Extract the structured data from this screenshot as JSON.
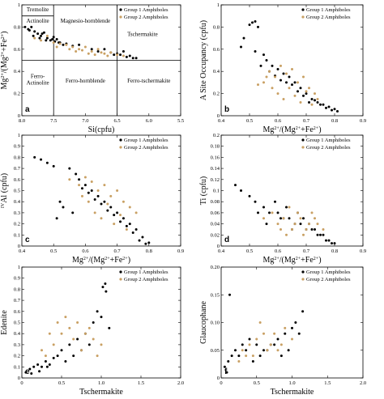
{
  "colors": {
    "group1": "#000000",
    "group2": "#c9a063"
  },
  "chart_data": [
    {
      "type": "scatter",
      "panel": "a",
      "xlabel": "Si(cpfu)",
      "ylabel": "Mg2+/(Mg2++Fe2+)",
      "xlim": [
        8.0,
        5.5
      ],
      "ylim": [
        0,
        1
      ],
      "xticks": [
        "8.0",
        "7.5",
        "7.0",
        "6.5",
        "6.0",
        "5.5"
      ],
      "yticks": [
        "0",
        "0.2",
        "0.4",
        "0.6",
        "0.8",
        "1"
      ],
      "legend": [
        "Group 1 Amphiboles",
        "Group 2 Amphiboles"
      ],
      "fields": [
        "Tremolite",
        "Actinolite",
        "Magnesio-hornblende",
        "Tschermakite",
        "Ferro-Actinolite",
        "Ferro-hornblende",
        "Ferro-tschermakite"
      ],
      "series": [
        {
          "name": "Group 1 Amphiboles",
          "x": [
            7.9,
            7.85,
            7.8,
            7.75,
            7.7,
            7.65,
            7.6,
            7.55,
            7.5,
            7.45,
            7.4,
            7.3,
            7.2,
            7.1,
            6.9,
            6.8,
            6.7,
            6.6,
            6.5,
            6.45,
            6.4,
            6.3,
            6.2,
            7.95,
            7.88,
            7.72,
            7.62,
            7.52,
            7.42,
            7.35,
            6.55,
            6.35,
            6.25,
            7.82,
            7.68,
            7.48
          ],
          "y": [
            0.78,
            0.8,
            0.76,
            0.74,
            0.72,
            0.75,
            0.7,
            0.68,
            0.71,
            0.69,
            0.66,
            0.65,
            0.63,
            0.64,
            0.6,
            0.58,
            0.6,
            0.57,
            0.56,
            0.55,
            0.58,
            0.54,
            0.52,
            0.8,
            0.77,
            0.7,
            0.68,
            0.69,
            0.66,
            0.64,
            0.55,
            0.53,
            0.52,
            0.72,
            0.74,
            0.67
          ]
        },
        {
          "name": "Group 2 Amphiboles",
          "x": [
            7.8,
            7.7,
            7.6,
            7.5,
            7.4,
            7.3,
            7.2,
            7.1,
            7.0,
            6.9,
            6.8,
            6.7,
            6.6,
            6.5,
            6.4,
            7.25,
            7.15,
            6.95,
            6.85,
            6.75,
            6.65,
            7.45,
            7.05
          ],
          "y": [
            0.7,
            0.68,
            0.72,
            0.66,
            0.65,
            0.64,
            0.62,
            0.6,
            0.62,
            0.58,
            0.6,
            0.56,
            0.57,
            0.55,
            0.54,
            0.6,
            0.58,
            0.56,
            0.55,
            0.57,
            0.54,
            0.62,
            0.59
          ]
        }
      ]
    },
    {
      "type": "scatter",
      "panel": "b",
      "xlabel": "Mg2+/(Mg2++Fe2+)",
      "ylabel": "A Site Occupancy (cpfu)",
      "xlim": [
        0.4,
        0.9
      ],
      "ylim": [
        0,
        1
      ],
      "xticks": [
        "0.4",
        "0.5",
        "0.6",
        "0.7",
        "0.8",
        "0.9"
      ],
      "yticks": [
        "0",
        "0.2",
        "0.4",
        "0.6",
        "0.8",
        "1"
      ],
      "legend": [
        "Group 1 Amphiboles",
        "Group 2 Amphiboles"
      ],
      "series": [
        {
          "name": "Group 1 Amphiboles",
          "x": [
            0.5,
            0.51,
            0.52,
            0.53,
            0.48,
            0.47,
            0.55,
            0.56,
            0.58,
            0.6,
            0.62,
            0.64,
            0.66,
            0.68,
            0.7,
            0.72,
            0.74,
            0.76,
            0.78,
            0.8,
            0.75,
            0.73,
            0.71,
            0.69,
            0.67,
            0.65,
            0.63,
            0.61,
            0.59,
            0.57,
            0.54,
            0.52,
            0.77,
            0.79,
            0.81
          ],
          "y": [
            0.82,
            0.84,
            0.85,
            0.8,
            0.7,
            0.62,
            0.55,
            0.5,
            0.45,
            0.42,
            0.38,
            0.35,
            0.3,
            0.25,
            0.2,
            0.15,
            0.12,
            0.1,
            0.08,
            0.06,
            0.1,
            0.14,
            0.12,
            0.18,
            0.22,
            0.28,
            0.3,
            0.32,
            0.36,
            0.4,
            0.45,
            0.58,
            0.07,
            0.05,
            0.04
          ]
        },
        {
          "name": "Group 2 Amphiboles",
          "x": [
            0.55,
            0.57,
            0.59,
            0.61,
            0.63,
            0.65,
            0.67,
            0.69,
            0.71,
            0.73,
            0.6,
            0.62,
            0.64,
            0.66,
            0.68,
            0.7,
            0.72,
            0.74,
            0.58,
            0.56,
            0.53
          ],
          "y": [
            0.3,
            0.4,
            0.35,
            0.45,
            0.38,
            0.42,
            0.3,
            0.35,
            0.25,
            0.2,
            0.2,
            0.15,
            0.25,
            0.18,
            0.12,
            0.22,
            0.1,
            0.15,
            0.25,
            0.35,
            0.28
          ]
        }
      ]
    },
    {
      "type": "scatter",
      "panel": "c",
      "xlabel": "Mg2+/(Mg2++Fe2+)",
      "ylabel": "IVAl (cpfu)",
      "xlim": [
        0.4,
        0.9
      ],
      "ylim": [
        0,
        1
      ],
      "xticks": [
        "0.4",
        "0.5",
        "0.6",
        "0.7",
        "0.8",
        "0.9"
      ],
      "yticks": [
        "0",
        "0.1",
        "0.2",
        "0.3",
        "0.4",
        "0.5",
        "0.6",
        "0.7",
        "0.8",
        "0.9",
        "1"
      ],
      "legend": [
        "Group 1 Amphiboles",
        "Group 2 Amphiboles"
      ],
      "series": [
        {
          "name": "Group 1 Amphiboles",
          "x": [
            0.44,
            0.46,
            0.48,
            0.5,
            0.52,
            0.55,
            0.57,
            0.58,
            0.6,
            0.62,
            0.64,
            0.66,
            0.68,
            0.7,
            0.72,
            0.74,
            0.76,
            0.78,
            0.8,
            0.75,
            0.73,
            0.71,
            0.69,
            0.67,
            0.65,
            0.63,
            0.61,
            0.59,
            0.56,
            0.53,
            0.51,
            0.77,
            0.79
          ],
          "y": [
            0.8,
            0.78,
            0.75,
            0.72,
            0.4,
            0.7,
            0.65,
            0.6,
            0.55,
            0.5,
            0.45,
            0.4,
            0.35,
            0.3,
            0.25,
            0.2,
            0.15,
            0.08,
            0.03,
            0.12,
            0.18,
            0.22,
            0.28,
            0.32,
            0.38,
            0.42,
            0.48,
            0.52,
            0.3,
            0.35,
            0.25,
            0.05,
            0.02
          ]
        },
        {
          "name": "Group 2 Amphiboles",
          "x": [
            0.55,
            0.58,
            0.6,
            0.62,
            0.64,
            0.66,
            0.68,
            0.7,
            0.72,
            0.74,
            0.76,
            0.63,
            0.65,
            0.67,
            0.69,
            0.71,
            0.73,
            0.61,
            0.59
          ],
          "y": [
            0.6,
            0.55,
            0.62,
            0.58,
            0.5,
            0.55,
            0.45,
            0.5,
            0.4,
            0.35,
            0.3,
            0.3,
            0.25,
            0.38,
            0.2,
            0.28,
            0.15,
            0.4,
            0.45
          ]
        }
      ]
    },
    {
      "type": "scatter",
      "panel": "d",
      "xlabel": "Mg2+/(Mg2++Fe2+)",
      "ylabel": "Ti (cpfu)",
      "xlim": [
        0.4,
        0.9
      ],
      "ylim": [
        0,
        0.2
      ],
      "xticks": [
        "0.4",
        "0.5",
        "0.6",
        "0.7",
        "0.8",
        "0.9"
      ],
      "yticks": [
        "0",
        "0.02",
        "0.04",
        "0.06",
        "0.08",
        "0.1",
        "0.12",
        "0.14",
        "0.16",
        "0.18",
        "0.2"
      ],
      "legend": [
        "Group 1 Amphiboles",
        "Group 2 Amphiboles"
      ],
      "series": [
        {
          "name": "Group 1 Amphiboles",
          "x": [
            0.45,
            0.47,
            0.5,
            0.52,
            0.55,
            0.57,
            0.6,
            0.62,
            0.64,
            0.66,
            0.68,
            0.7,
            0.72,
            0.74,
            0.76,
            0.78,
            0.8,
            0.75,
            0.73,
            0.71,
            0.69,
            0.67,
            0.65,
            0.63,
            0.61,
            0.59,
            0.56,
            0.53,
            0.77,
            0.79
          ],
          "y": [
            0.11,
            0.1,
            0.09,
            0.08,
            0.07,
            0.06,
            0.06,
            0.05,
            0.05,
            0.04,
            0.04,
            0.03,
            0.03,
            0.02,
            0.02,
            0.01,
            0.005,
            0.02,
            0.03,
            0.04,
            0.05,
            0.06,
            0.03,
            0.07,
            0.05,
            0.08,
            0.04,
            0.06,
            0.01,
            0.005
          ]
        },
        {
          "name": "Group 2 Amphiboles",
          "x": [
            0.55,
            0.58,
            0.6,
            0.62,
            0.64,
            0.66,
            0.68,
            0.7,
            0.72,
            0.74,
            0.76,
            0.63,
            0.65,
            0.67,
            0.69,
            0.71,
            0.73,
            0.61
          ],
          "y": [
            0.05,
            0.06,
            0.04,
            0.05,
            0.07,
            0.04,
            0.05,
            0.03,
            0.06,
            0.04,
            0.03,
            0.02,
            0.03,
            0.06,
            0.02,
            0.04,
            0.05,
            0.03
          ]
        }
      ]
    },
    {
      "type": "scatter",
      "panel": "e",
      "xlabel": "Tschermakite",
      "ylabel": "Edenite",
      "xlim": [
        0,
        2
      ],
      "ylim": [
        0,
        1
      ],
      "xticks": [
        "0",
        "0.5",
        "1.0",
        "1.5",
        "2.0"
      ],
      "yticks": [
        "0",
        "0.1",
        "0.2",
        "0.3",
        "0.4",
        "0.5",
        "0.6",
        "0.7",
        "0.8",
        "0.9",
        "1"
      ],
      "legend": [
        "Group 1 Amphiboles",
        "Group 2 Amphiboles"
      ],
      "series": [
        {
          "name": "Group 1 Amphiboles",
          "x": [
            0.05,
            0.1,
            0.15,
            0.2,
            0.25,
            0.3,
            0.35,
            0.4,
            0.45,
            0.5,
            0.6,
            0.7,
            0.8,
            0.9,
            1.0,
            1.05,
            1.1,
            0.95,
            0.85,
            0.75,
            0.65,
            0.55,
            1.02,
            1.06,
            0.12,
            0.22,
            0.32
          ],
          "y": [
            0.05,
            0.08,
            0.1,
            0.12,
            0.1,
            0.15,
            0.12,
            0.18,
            0.2,
            0.25,
            0.3,
            0.35,
            0.4,
            0.5,
            0.55,
            0.85,
            0.45,
            0.6,
            0.3,
            0.25,
            0.2,
            0.15,
            0.82,
            0.78,
            0.04,
            0.06,
            0.1
          ]
        },
        {
          "name": "Group 2 Amphiboles",
          "x": [
            0.3,
            0.4,
            0.5,
            0.6,
            0.7,
            0.8,
            0.9,
            1.0,
            0.45,
            0.55,
            0.65,
            0.75,
            0.85,
            0.95,
            0.35,
            0.25
          ],
          "y": [
            0.2,
            0.3,
            0.4,
            0.45,
            0.5,
            0.4,
            0.35,
            0.3,
            0.5,
            0.55,
            0.35,
            0.25,
            0.45,
            0.2,
            0.4,
            0.25
          ]
        }
      ]
    },
    {
      "type": "scatter",
      "panel": "f",
      "xlabel": "Tschermakite",
      "ylabel": "Glaucophane",
      "xlim": [
        0,
        2
      ],
      "ylim": [
        0,
        0.2
      ],
      "xticks": [
        "0",
        "0.5",
        "1.0",
        "1.5",
        "2.0"
      ],
      "yticks": [
        "0",
        "0.05",
        "0.10",
        "0.15",
        "0.20"
      ],
      "legend": [
        "Group 1 Amphiboles",
        "Group 2 Amphiboles"
      ],
      "series": [
        {
          "name": "Group 1 Amphiboles",
          "x": [
            0.05,
            0.1,
            0.15,
            0.2,
            0.25,
            0.3,
            0.35,
            0.4,
            0.5,
            0.6,
            0.7,
            0.8,
            0.9,
            1.0,
            1.1,
            1.15,
            1.05,
            0.95,
            0.85,
            0.75,
            0.65,
            0.55,
            0.45,
            0.12,
            0.08
          ],
          "y": [
            0.02,
            0.03,
            0.04,
            0.05,
            0.04,
            0.06,
            0.05,
            0.07,
            0.06,
            0.05,
            0.06,
            0.07,
            0.08,
            0.09,
            0.08,
            0.12,
            0.1,
            0.05,
            0.04,
            0.06,
            0.05,
            0.04,
            0.03,
            0.15,
            0.01
          ]
        },
        {
          "name": "Group 2 Amphiboles",
          "x": [
            0.3,
            0.4,
            0.5,
            0.6,
            0.7,
            0.8,
            0.9,
            1.0,
            0.45,
            0.55,
            0.65,
            0.75,
            0.85,
            0.35,
            0.25
          ],
          "y": [
            0.05,
            0.06,
            0.07,
            0.08,
            0.06,
            0.05,
            0.09,
            0.07,
            0.04,
            0.1,
            0.05,
            0.08,
            0.06,
            0.04,
            0.03
          ]
        }
      ]
    }
  ]
}
